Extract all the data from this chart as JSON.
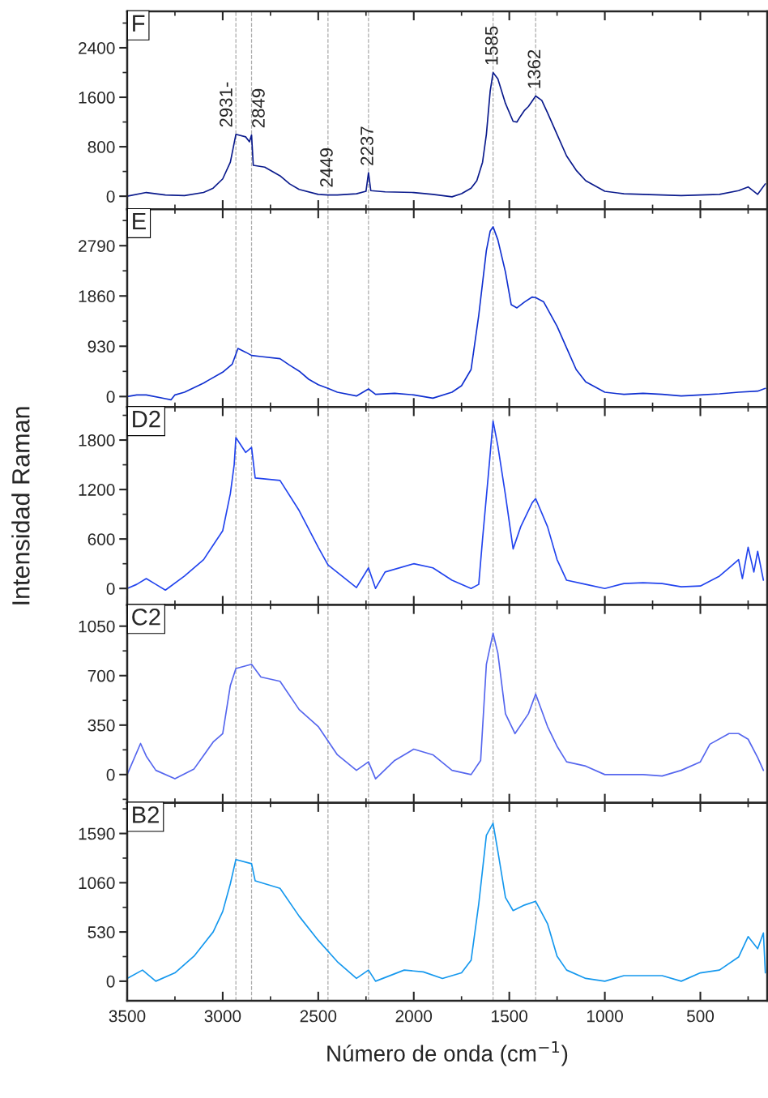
{
  "chart_data": [
    {
      "type": "line",
      "title": "F",
      "xlim": [
        3500,
        150
      ],
      "xticks": [
        3500,
        3000,
        2500,
        2000,
        1500,
        1000,
        500
      ],
      "ylim": [
        -210,
        2990
      ],
      "yticks": [
        0,
        800,
        1600,
        2400
      ],
      "tick_labels": "y",
      "ref_lines": [
        {
          "axis": "x",
          "value": 2931,
          "label": "2931-",
          "color": "#aaaaaa",
          "line_style": "dashed"
        },
        {
          "axis": "x",
          "value": 2849,
          "label": "2849",
          "color": "#aaaaaa",
          "line_style": "dashed"
        },
        {
          "axis": "x",
          "value": 2449,
          "label": "2449",
          "color": "#aaaaaa",
          "line_style": "dashed"
        },
        {
          "axis": "x",
          "value": 2237,
          "label": "2237",
          "color": "#aaaaaa",
          "line_style": "dashed"
        },
        {
          "axis": "x",
          "value": 1585,
          "label": "1585",
          "color": "#aaaaaa",
          "line_style": "dashed"
        },
        {
          "axis": "x",
          "value": 1362,
          "label": "1362",
          "color": "#aaaaaa",
          "line_style": "dashed"
        }
      ],
      "series": [
        {
          "color": "#0a1a8c",
          "x": [
            3500,
            3400,
            3300,
            3200,
            3100,
            3050,
            3000,
            2960,
            2931,
            2880,
            2860,
            2849,
            2840,
            2780,
            2700,
            2650,
            2600,
            2500,
            2449,
            2400,
            2300,
            2250,
            2237,
            2225,
            2150,
            2000,
            1900,
            1800,
            1750,
            1700,
            1670,
            1640,
            1620,
            1600,
            1585,
            1560,
            1520,
            1480,
            1460,
            1440,
            1420,
            1400,
            1362,
            1330,
            1300,
            1250,
            1200,
            1150,
            1100,
            1000,
            900,
            800,
            700,
            600,
            500,
            400,
            300,
            250,
            200,
            160
          ],
          "values": [
            0,
            60,
            20,
            10,
            60,
            130,
            280,
            550,
            1000,
            960,
            880,
            990,
            500,
            470,
            330,
            200,
            110,
            30,
            20,
            20,
            40,
            80,
            380,
            90,
            70,
            60,
            30,
            -10,
            40,
            130,
            250,
            550,
            1000,
            1700,
            2000,
            1900,
            1500,
            1210,
            1200,
            1300,
            1390,
            1450,
            1620,
            1550,
            1350,
            1000,
            650,
            420,
            250,
            80,
            40,
            30,
            20,
            10,
            20,
            30,
            90,
            150,
            30,
            200
          ]
        }
      ]
    },
    {
      "type": "line",
      "title": "E",
      "xlim": [
        3500,
        150
      ],
      "xticks": [
        3500,
        3000,
        2500,
        2000,
        1500,
        1000,
        500
      ],
      "ylim": [
        -195,
        3465
      ],
      "yticks": [
        0,
        930,
        1860,
        2790
      ],
      "tick_labels": "y",
      "ref_lines": [
        {
          "axis": "x",
          "value": 2931,
          "color": "#aaaaaa",
          "line_style": "dashed"
        },
        {
          "axis": "x",
          "value": 2849,
          "color": "#aaaaaa",
          "line_style": "dashed"
        },
        {
          "axis": "x",
          "value": 2449,
          "color": "#aaaaaa",
          "line_style": "dashed"
        },
        {
          "axis": "x",
          "value": 2237,
          "color": "#aaaaaa",
          "line_style": "dashed"
        },
        {
          "axis": "x",
          "value": 1585,
          "color": "#aaaaaa",
          "line_style": "dashed"
        },
        {
          "axis": "x",
          "value": 1362,
          "color": "#aaaaaa",
          "line_style": "dashed"
        }
      ],
      "series": [
        {
          "color": "#1030d0",
          "x": [
            3500,
            3450,
            3400,
            3300,
            3270,
            3250,
            3200,
            3100,
            3000,
            2950,
            2920,
            2880,
            2849,
            2800,
            2700,
            2650,
            2600,
            2550,
            2500,
            2449,
            2400,
            2300,
            2237,
            2200,
            2100,
            2000,
            1900,
            1800,
            1750,
            1700,
            1660,
            1620,
            1600,
            1585,
            1560,
            1520,
            1490,
            1460,
            1420,
            1380,
            1362,
            1320,
            1250,
            1200,
            1150,
            1100,
            1000,
            900,
            800,
            700,
            600,
            500,
            400,
            300,
            200,
            160
          ],
          "values": [
            0,
            30,
            30,
            -40,
            -60,
            30,
            80,
            250,
            450,
            600,
            890,
            820,
            760,
            740,
            700,
            580,
            470,
            320,
            220,
            150,
            80,
            10,
            140,
            40,
            60,
            30,
            -30,
            80,
            200,
            500,
            1500,
            2700,
            3060,
            3140,
            2900,
            2300,
            1700,
            1640,
            1750,
            1840,
            1830,
            1750,
            1300,
            900,
            500,
            270,
            80,
            40,
            60,
            40,
            10,
            30,
            50,
            80,
            100,
            150
          ]
        }
      ]
    },
    {
      "type": "line",
      "title": "D2",
      "xlim": [
        3500,
        150
      ],
      "xticks": [
        3500,
        3000,
        2500,
        2000,
        1500,
        1000,
        500
      ],
      "ylim": [
        -200,
        2200
      ],
      "yticks": [
        0,
        600,
        1200,
        1800
      ],
      "tick_labels": "y",
      "ylabel": "Intensidad Raman",
      "ref_lines": [
        {
          "axis": "x",
          "value": 2931,
          "color": "#aaaaaa",
          "line_style": "dashed"
        },
        {
          "axis": "x",
          "value": 2849,
          "color": "#aaaaaa",
          "line_style": "dashed"
        },
        {
          "axis": "x",
          "value": 2449,
          "color": "#aaaaaa",
          "line_style": "dashed"
        },
        {
          "axis": "x",
          "value": 2237,
          "color": "#aaaaaa",
          "line_style": "dashed"
        },
        {
          "axis": "x",
          "value": 1585,
          "color": "#aaaaaa",
          "line_style": "dashed"
        },
        {
          "axis": "x",
          "value": 1362,
          "color": "#aaaaaa",
          "line_style": "dashed"
        }
      ],
      "series": [
        {
          "color": "#2244ee",
          "x": [
            3500,
            3450,
            3400,
            3350,
            3300,
            3200,
            3100,
            3000,
            2960,
            2940,
            2931,
            2880,
            2849,
            2830,
            2700,
            2600,
            2500,
            2449,
            2300,
            2237,
            2200,
            2150,
            2000,
            1900,
            1800,
            1700,
            1660,
            1640,
            1610,
            1585,
            1560,
            1520,
            1480,
            1440,
            1380,
            1362,
            1300,
            1250,
            1200,
            1100,
            1000,
            900,
            800,
            700,
            600,
            500,
            400,
            350,
            300,
            280,
            250,
            220,
            200,
            170
          ],
          "values": [
            0,
            50,
            120,
            50,
            -20,
            150,
            350,
            700,
            1150,
            1500,
            1830,
            1650,
            1710,
            1340,
            1310,
            945,
            500,
            285,
            10,
            250,
            0,
            200,
            300,
            250,
            100,
            0,
            50,
            600,
            1370,
            2030,
            1730,
            1130,
            480,
            750,
            1040,
            1090,
            750,
            350,
            100,
            50,
            0,
            60,
            70,
            60,
            20,
            30,
            150,
            250,
            350,
            120,
            500,
            200,
            450,
            100
          ]
        }
      ]
    },
    {
      "type": "line",
      "title": "C2",
      "xlim": [
        3500,
        150
      ],
      "xticks": [
        3500,
        3000,
        2500,
        2000,
        1500,
        1000,
        500
      ],
      "ylim": [
        -200,
        1200
      ],
      "yticks": [
        0,
        350,
        700,
        1050
      ],
      "tick_labels": "y",
      "ref_lines": [
        {
          "axis": "x",
          "value": 2931,
          "color": "#aaaaaa",
          "line_style": "dashed"
        },
        {
          "axis": "x",
          "value": 2849,
          "color": "#aaaaaa",
          "line_style": "dashed"
        },
        {
          "axis": "x",
          "value": 2449,
          "color": "#aaaaaa",
          "line_style": "dashed"
        },
        {
          "axis": "x",
          "value": 2237,
          "color": "#aaaaaa",
          "line_style": "dashed"
        },
        {
          "axis": "x",
          "value": 1585,
          "color": "#aaaaaa",
          "line_style": "dashed"
        },
        {
          "axis": "x",
          "value": 1362,
          "color": "#aaaaaa",
          "line_style": "dashed"
        }
      ],
      "series": [
        {
          "color": "#5566ee",
          "x": [
            3500,
            3430,
            3400,
            3350,
            3250,
            3150,
            3050,
            3000,
            2960,
            2931,
            2849,
            2800,
            2700,
            2600,
            2500,
            2400,
            2300,
            2237,
            2200,
            2100,
            2000,
            1900,
            1800,
            1700,
            1650,
            1620,
            1585,
            1560,
            1520,
            1470,
            1400,
            1362,
            1300,
            1250,
            1200,
            1100,
            1000,
            900,
            800,
            700,
            600,
            500,
            450,
            350,
            300,
            250,
            200,
            170
          ],
          "values": [
            0,
            220,
            130,
            30,
            -30,
            40,
            230,
            290,
            630,
            750,
            780,
            690,
            660,
            460,
            340,
            140,
            30,
            90,
            -30,
            100,
            180,
            140,
            30,
            0,
            100,
            780,
            1000,
            860,
            430,
            290,
            430,
            570,
            340,
            200,
            90,
            60,
            0,
            0,
            0,
            -10,
            30,
            90,
            215,
            290,
            290,
            250,
            120,
            30
          ]
        }
      ]
    },
    {
      "type": "line",
      "title": "B2",
      "xlim": [
        3500,
        150
      ],
      "xticks": [
        3500,
        3000,
        2500,
        2000,
        1500,
        1000,
        500
      ],
      "ylim": [
        -210,
        1920
      ],
      "yticks": [
        0,
        530,
        1060,
        1590
      ],
      "xlabel": "Número de onda (cm$^{−1}$)",
      "ref_lines": [
        {
          "axis": "x",
          "value": 2931,
          "color": "#aaaaaa",
          "line_style": "dashed"
        },
        {
          "axis": "x",
          "value": 2849,
          "color": "#aaaaaa",
          "line_style": "dashed"
        },
        {
          "axis": "x",
          "value": 2449,
          "color": "#aaaaaa",
          "line_style": "dashed"
        },
        {
          "axis": "x",
          "value": 2237,
          "color": "#aaaaaa",
          "line_style": "dashed"
        },
        {
          "axis": "x",
          "value": 1585,
          "color": "#aaaaaa",
          "line_style": "dashed"
        },
        {
          "axis": "x",
          "value": 1362,
          "color": "#aaaaaa",
          "line_style": "dashed"
        }
      ],
      "series": [
        {
          "color": "#1598ee",
          "x": [
            3500,
            3420,
            3350,
            3250,
            3150,
            3050,
            3000,
            2960,
            2931,
            2849,
            2830,
            2700,
            2600,
            2500,
            2400,
            2300,
            2237,
            2200,
            2050,
            1950,
            1850,
            1750,
            1700,
            1660,
            1620,
            1585,
            1560,
            1520,
            1480,
            1420,
            1362,
            1300,
            1250,
            1200,
            1100,
            1000,
            900,
            700,
            600,
            500,
            400,
            300,
            250,
            200,
            170,
            160
          ],
          "values": [
            30,
            120,
            0,
            90,
            270,
            530,
            750,
            1050,
            1310,
            1265,
            1080,
            1000,
            700,
            440,
            210,
            30,
            120,
            0,
            120,
            100,
            30,
            90,
            225,
            830,
            1570,
            1700,
            1400,
            900,
            760,
            820,
            860,
            620,
            270,
            120,
            30,
            0,
            60,
            60,
            0,
            90,
            120,
            260,
            480,
            350,
            520,
            90
          ]
        }
      ]
    }
  ]
}
